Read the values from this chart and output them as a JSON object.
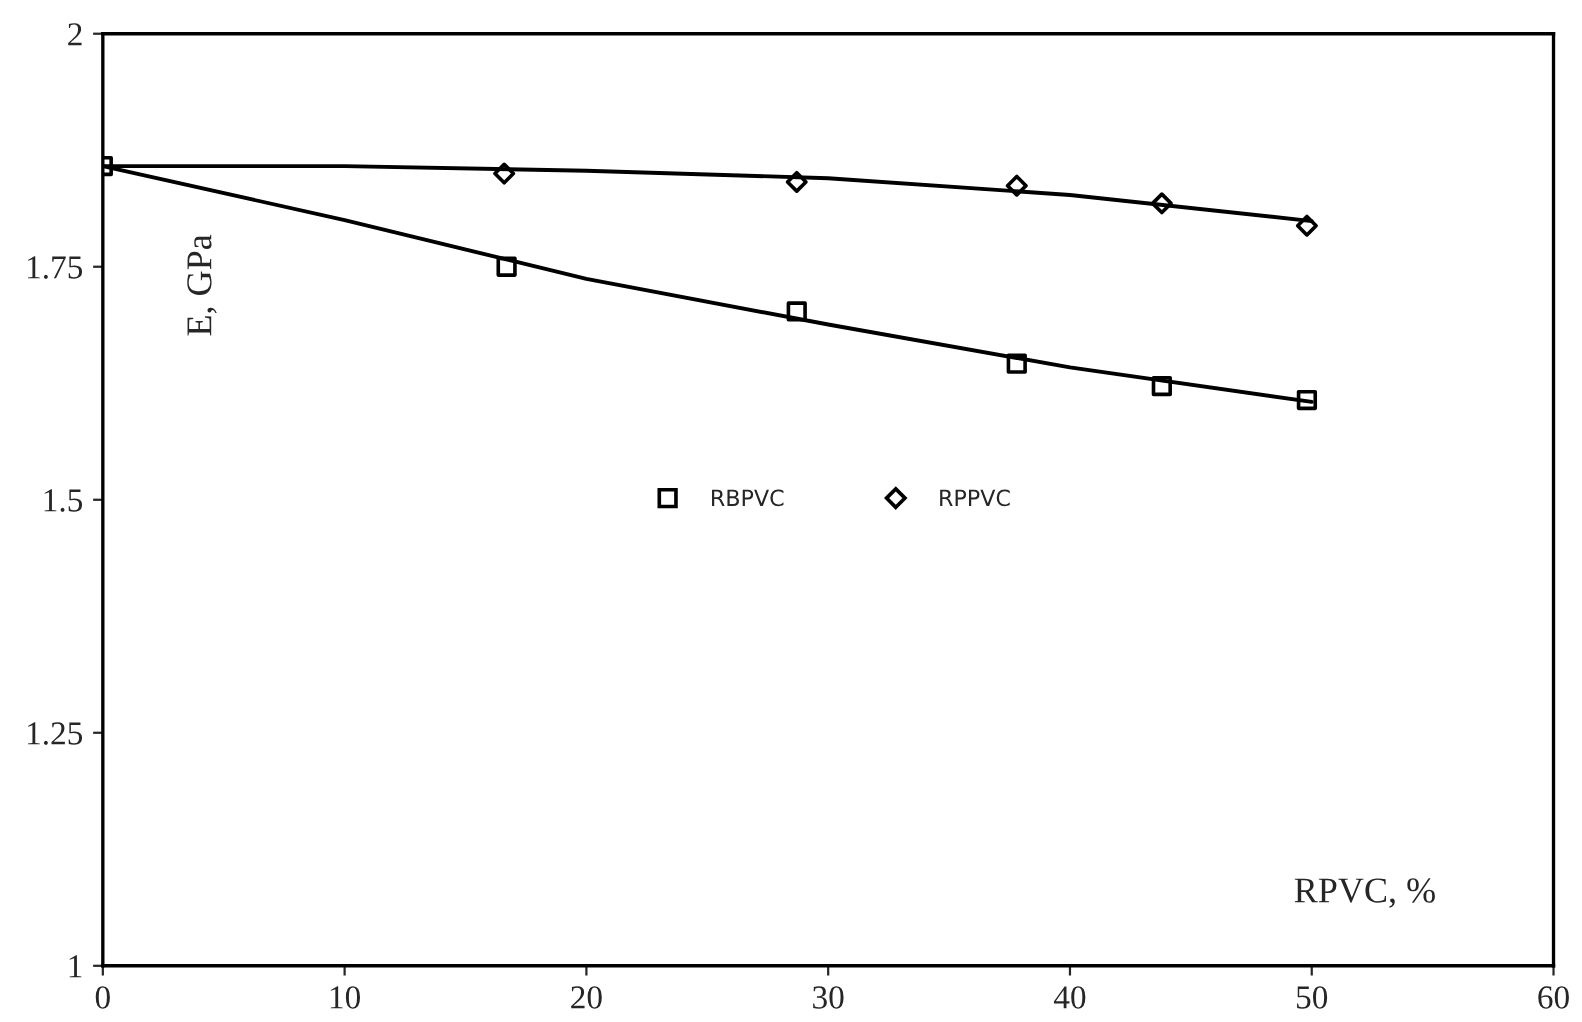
{
  "chart_data": {
    "type": "scatter",
    "xlabel": "RPVC, %",
    "ylabel": "E, GPa",
    "xlim": [
      0,
      60
    ],
    "ylim": [
      1,
      2
    ],
    "xticks": [
      0,
      10,
      20,
      30,
      40,
      50,
      60
    ],
    "yticks": [
      1,
      1.25,
      1.5,
      1.75,
      2
    ],
    "grid": false,
    "legend": "center",
    "series": [
      {
        "name": "RBPVC",
        "marker": "square",
        "color": "#000000",
        "x": [
          0,
          16.7,
          28.7,
          37.8,
          43.8,
          49.8
        ],
        "values": [
          1.858,
          1.75,
          1.702,
          1.646,
          1.622,
          1.607
        ]
      },
      {
        "name": "RPPVC",
        "marker": "diamond",
        "color": "#000000",
        "x": [
          16.6,
          28.7,
          37.8,
          43.8,
          49.8
        ],
        "values": [
          1.85,
          1.841,
          1.837,
          1.818,
          1.794
        ]
      },
      {
        "type": "line",
        "line_style": "solid",
        "color": "#000000",
        "x": [
          0,
          10,
          20,
          30,
          40,
          50
        ],
        "values": [
          1.858,
          1.8,
          1.737,
          1.688,
          1.642,
          1.605
        ]
      },
      {
        "type": "line",
        "line_style": "solid",
        "color": "#000000",
        "x": [
          0,
          10,
          20,
          30,
          40,
          50
        ],
        "values": [
          1.858,
          1.858,
          1.853,
          1.845,
          1.827,
          1.799
        ]
      }
    ]
  }
}
